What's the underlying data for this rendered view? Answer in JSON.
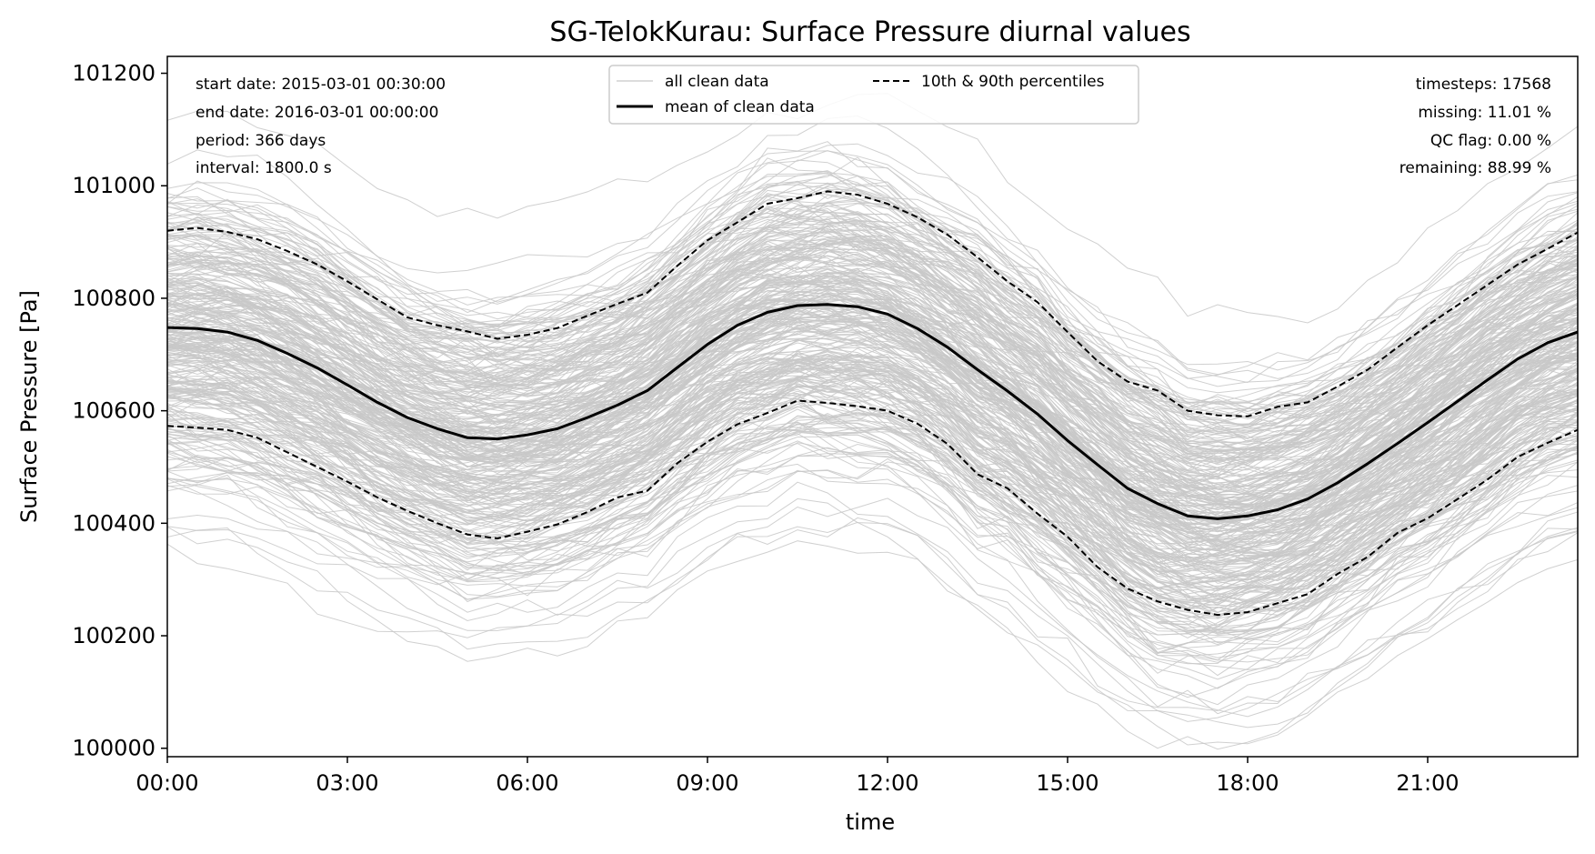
{
  "chart_data": {
    "type": "line",
    "title": "SG-TelokKurau: Surface Pressure diurnal values",
    "xlabel": "time",
    "ylabel": "Surface Pressure [Pa]",
    "xlim": [
      0,
      23.5
    ],
    "ylim": [
      99985,
      101230
    ],
    "x_ticks": [
      0,
      3,
      6,
      9,
      12,
      15,
      18,
      21
    ],
    "x_tick_labels": [
      "00:00",
      "03:00",
      "06:00",
      "09:00",
      "12:00",
      "15:00",
      "18:00",
      "21:00"
    ],
    "y_ticks": [
      100000,
      100200,
      100400,
      100600,
      100800,
      101000,
      101200
    ],
    "y_tick_labels": [
      "100000",
      "100200",
      "100400",
      "100600",
      "100800",
      "101000",
      "101200"
    ],
    "info_left": [
      "start date: 2015-03-01 00:30:00",
      "end date: 2016-03-01 00:00:00",
      "period: 366 days",
      "interval: 1800.0 s"
    ],
    "info_right": [
      "timesteps: 17568",
      "missing: 11.01 %",
      "QC flag: 0.00 %",
      "remaining: 88.99 %"
    ],
    "legend": {
      "placement": "top-center",
      "entries": [
        {
          "label": "all clean data",
          "style": "thin-grey"
        },
        {
          "label": "mean of clean data",
          "style": "solid-black"
        },
        {
          "label": "10th & 90th percentiles",
          "style": "dashed-black"
        }
      ]
    },
    "colors": {
      "clean_data": "#c8c8c8",
      "mean": "#000000",
      "percentiles": "#000000"
    },
    "x": [
      0,
      0.5,
      1,
      1.5,
      2,
      2.5,
      3,
      3.5,
      4,
      4.5,
      5,
      5.5,
      6,
      6.5,
      7,
      7.5,
      8,
      8.5,
      9,
      9.5,
      10,
      10.5,
      11,
      11.5,
      12,
      12.5,
      13,
      13.5,
      14,
      14.5,
      15,
      15.5,
      16,
      16.5,
      17,
      17.5,
      18,
      18.5,
      19,
      19.5,
      20,
      20.5,
      21,
      21.5,
      22,
      22.5,
      23,
      23.5
    ],
    "series": [
      {
        "name": "mean of clean data",
        "style": "solid",
        "values": [
          100748,
          100746,
          100740,
          100725,
          100702,
          100676,
          100646,
          100615,
          100588,
          100568,
          100552,
          100550,
          100557,
          100568,
          100588,
          100610,
          100636,
          100677,
          100718,
          100752,
          100775,
          100787,
          100789,
          100785,
          100772,
          100746,
          100713,
          100673,
          100635,
          100594,
          100547,
          100504,
          100462,
          100435,
          100413,
          100408,
          100413,
          100424,
          100443,
          100472,
          100506,
          100542,
          100579,
          100617,
          100655,
          100692,
          100721,
          100740
        ]
      },
      {
        "name": "90th percentile",
        "style": "dashed",
        "values": [
          100920,
          100925,
          100918,
          100905,
          100884,
          100860,
          100830,
          100798,
          100766,
          100752,
          100741,
          100728,
          100735,
          100747,
          100769,
          100790,
          100810,
          100858,
          100903,
          100935,
          100968,
          100978,
          100990,
          100984,
          100968,
          100944,
          100913,
          100873,
          100830,
          100793,
          100740,
          100688,
          100652,
          100636,
          100600,
          100592,
          100590,
          100607,
          100615,
          100643,
          100673,
          100713,
          100752,
          100788,
          100824,
          100860,
          100888,
          100917
        ]
      },
      {
        "name": "10th percentile",
        "style": "dashed",
        "values": [
          100573,
          100570,
          100566,
          100552,
          100526,
          100500,
          100474,
          100446,
          100422,
          100400,
          100380,
          100373,
          100385,
          100398,
          100420,
          100446,
          100458,
          100507,
          100545,
          100576,
          100596,
          100618,
          100614,
          100608,
          100600,
          100577,
          100541,
          100487,
          100462,
          100417,
          100376,
          100322,
          100284,
          100261,
          100246,
          100237,
          100242,
          100258,
          100274,
          100310,
          100340,
          100383,
          100409,
          100443,
          100478,
          100518,
          100543,
          100566
        ]
      }
    ]
  }
}
